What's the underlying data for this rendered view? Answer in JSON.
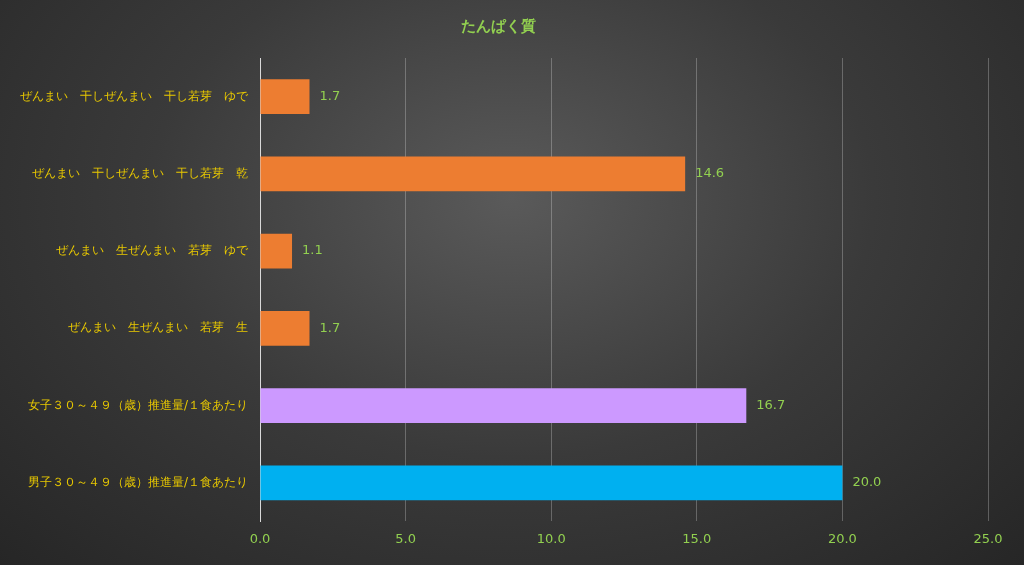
{
  "chart_data": {
    "type": "bar",
    "orientation": "horizontal",
    "title": "たんぱく質",
    "categories": [
      "ぜんまい　干しぜんまい　干し若芽　ゆで",
      "ぜんまい　干しぜんまい　干し若芽　乾",
      "ぜんまい　生ぜんまい　若芽　ゆで",
      "ぜんまい　生ぜんまい　若芽　生",
      "女子３０～４９（歳）推進量/１食あたり",
      "男子３０～４９（歳）推進量/１食あたり"
    ],
    "values": [
      1.7,
      14.6,
      1.1,
      1.7,
      16.7,
      20.0
    ],
    "colors": [
      "#ed7d31",
      "#ed7d31",
      "#ed7d31",
      "#ed7d31",
      "#cc99ff",
      "#00b0f0"
    ],
    "value_labels": [
      "1.7",
      "14.6",
      "1.1",
      "1.7",
      "16.7",
      "20.0"
    ],
    "xlim": [
      0,
      25
    ],
    "xticks": [
      {
        "value": 0,
        "label": "0.0"
      },
      {
        "value": 5,
        "label": "5.0"
      },
      {
        "value": 10,
        "label": "10.0"
      },
      {
        "value": 15,
        "label": "15.0"
      },
      {
        "value": 20,
        "label": "20.0"
      },
      {
        "value": 25,
        "label": "25.0"
      }
    ],
    "grid": "x",
    "legend": false
  }
}
